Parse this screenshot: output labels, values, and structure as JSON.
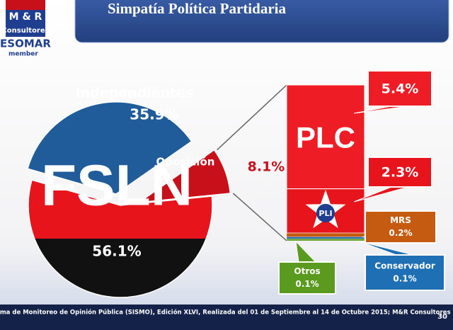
{
  "logo": {
    "name": "M & R",
    "sub": "Consultores",
    "org": "ESOMAR",
    "member": "member"
  },
  "chart_data": {
    "type": "pie",
    "title": "Simpatía Política Partidaria",
    "categories": [
      "Independientes",
      "Oposición",
      "FSLN"
    ],
    "values": [
      35.9,
      8.1,
      56.1
    ],
    "value_labels": [
      "35.9%",
      "8.1%",
      "56.1%"
    ],
    "colors": [
      "#1f5c99",
      "#c8101a",
      [
        "#e8141c",
        "#111111"
      ]
    ],
    "breakdown": {
      "type": "stacked-bar",
      "categories": [
        "PLC",
        "PLI",
        "MRS",
        "Conservador",
        "Otros"
      ],
      "values": [
        5.4,
        2.3,
        0.2,
        0.1,
        0.1
      ],
      "value_labels": [
        "5.4%",
        "2.3%",
        "0.2%",
        "0.1%",
        "0.1%"
      ],
      "colors": [
        "#ee1c24",
        "#e8141c",
        "#c55a11",
        "#1f6fb5",
        "#5a9a1f"
      ]
    }
  },
  "footer": {
    "source": "tema de Monitoreo de Opinión Pública (SISMO), Edición XLVI, Realizada del 01 de Septiembre al 14 de Octubre 2015; M&R Consultores",
    "page": "30"
  }
}
